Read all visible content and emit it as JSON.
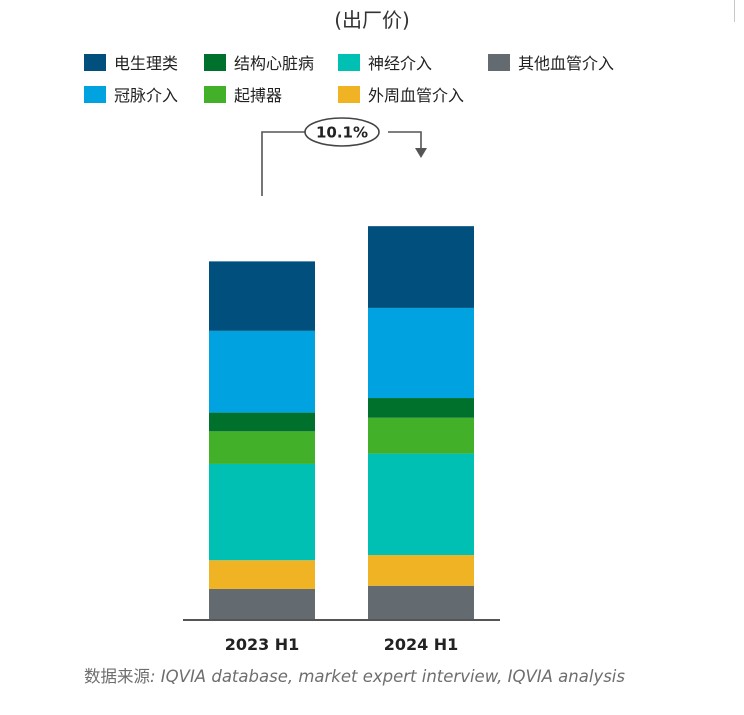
{
  "title": "(出厂价)",
  "source": {
    "label": "数据来源",
    "text": ": IQVIA database, market expert interview, IQVIA analysis"
  },
  "chart_data": {
    "type": "bar",
    "stacked": true,
    "categories": [
      "2023 H1",
      "2024 H1"
    ],
    "growth_annotation": "10.1%",
    "series": [
      {
        "name": "其他血管介入",
        "color": "#646b70",
        "values": [
          9.6,
          10.6
        ]
      },
      {
        "name": "外周血管介入",
        "color": "#f0b323",
        "values": [
          8.9,
          9.5
        ]
      },
      {
        "name": "神经介入",
        "color": "#00bfb3",
        "values": [
          29.8,
          31.4
        ]
      },
      {
        "name": "起搏器",
        "color": "#43b02a",
        "values": [
          10.1,
          11.1
        ]
      },
      {
        "name": "结构心脏病",
        "color": "#00712c",
        "values": [
          5.8,
          6.1
        ]
      },
      {
        "name": "冠脉介入",
        "color": "#00a3e0",
        "values": [
          25.3,
          27.9
        ]
      },
      {
        "name": "电生理类",
        "color": "#004f7c",
        "values": [
          21.5,
          25.3
        ]
      }
    ],
    "legend": [
      {
        "name": "电生理类",
        "color": "#004f7c"
      },
      {
        "name": "结构心脏病",
        "color": "#00712c"
      },
      {
        "name": "神经介入",
        "color": "#00bfb3"
      },
      {
        "name": "其他血管介入",
        "color": "#646b70"
      },
      {
        "name": "冠脉介入",
        "color": "#00a3e0"
      },
      {
        "name": "起搏器",
        "color": "#43b02a"
      },
      {
        "name": "外周血管介入",
        "color": "#f0b323"
      }
    ],
    "legend_placement": "top",
    "grid": false,
    "ylim": [
      0,
      130
    ]
  }
}
